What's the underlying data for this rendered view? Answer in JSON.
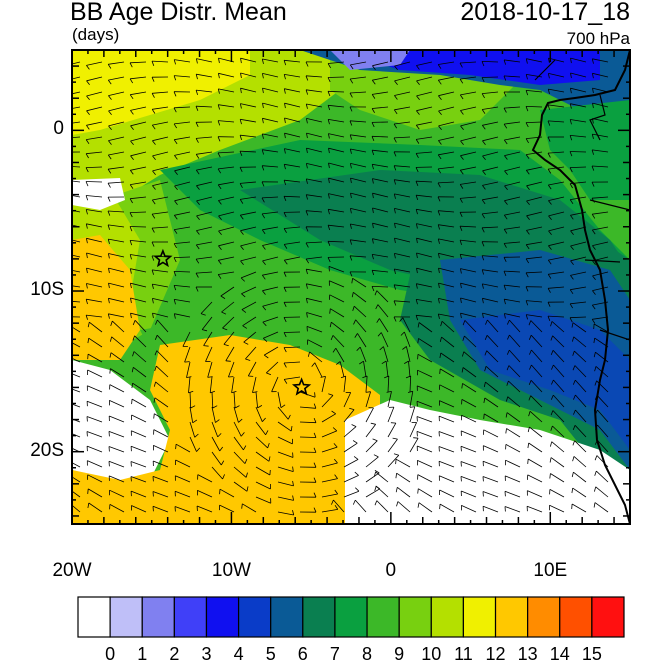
{
  "header": {
    "title": "BB Age Distr. Mean",
    "date": "2018-10-17_18",
    "units": "(days)",
    "level": "700 hPa"
  },
  "map": {
    "domain_lon": [
      -20,
      15
    ],
    "domain_lat": [
      -24.5,
      5
    ],
    "lat_ticks": [
      {
        "lat": 0,
        "label": "0"
      },
      {
        "lat": -10,
        "label": "10S"
      },
      {
        "lat": -20,
        "label": "20S"
      }
    ],
    "lon_ticks": [
      {
        "lon": -20,
        "label": "20W"
      },
      {
        "lon": -10,
        "label": "10W"
      },
      {
        "lon": 0,
        "label": "0"
      },
      {
        "lon": 10,
        "label": "10E"
      }
    ],
    "stars": [
      {
        "lon": -14.3,
        "lat": -8.0
      },
      {
        "lon": -5.6,
        "lat": -16.0
      }
    ]
  },
  "colorbar": {
    "labels": [
      "0",
      "1",
      "2",
      "3",
      "4",
      "5",
      "6",
      "7",
      "8",
      "9",
      "10",
      "11",
      "12",
      "13",
      "14",
      "15"
    ],
    "colors": [
      "#ffffff",
      "#bfbff8",
      "#8080f0",
      "#4040f8",
      "#1010f0",
      "#0a3cc8",
      "#0a5a96",
      "#0a7f50",
      "#0aa040",
      "#3cb828",
      "#78d010",
      "#b4e000",
      "#f0f000",
      "#ffc800",
      "#ff8c00",
      "#ff5000",
      "#ff1010"
    ]
  }
}
